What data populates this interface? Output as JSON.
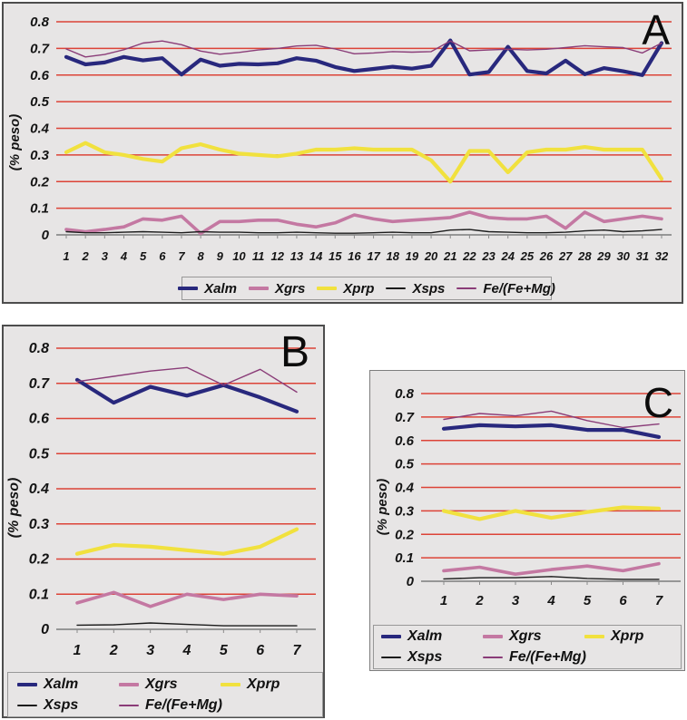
{
  "colors": {
    "page_bg": "#ffffff",
    "panel_bg": "#e7e5e5",
    "panel_border": "#4d4d4d",
    "gridline_red": "#dc4337",
    "axis_gray": "#8a8a8a",
    "text": "#141414",
    "legend_border": "#989898",
    "series": {
      "Xalm": "#28287d",
      "Xgrs": "#c478a2",
      "Xprp": "#f1e13e",
      "Xsps": "#1c1c1c",
      "Fe/(Fe+Mg)": "#8a3c78"
    }
  },
  "chart_data": [
    {
      "panel": "A",
      "type": "line",
      "title": "A",
      "ylabel": "(% peso)",
      "xlabel": "",
      "ylim": [
        0,
        0.8
      ],
      "grid": "horizontal-red",
      "legend_position": "bottom-center",
      "y_ticks": [
        "0",
        "0.1",
        "0.2",
        "0.3",
        "0.4",
        "0.5",
        "0.6",
        "0.7",
        "0.8"
      ],
      "x": [
        1,
        2,
        3,
        4,
        5,
        6,
        7,
        8,
        9,
        10,
        11,
        12,
        13,
        14,
        15,
        16,
        17,
        18,
        19,
        20,
        21,
        22,
        23,
        24,
        25,
        26,
        27,
        28,
        29,
        30,
        31,
        32
      ],
      "series": [
        {
          "name": "Xalm",
          "values": [
            0.668,
            0.64,
            0.647,
            0.668,
            0.655,
            0.663,
            0.602,
            0.658,
            0.635,
            0.642,
            0.64,
            0.644,
            0.663,
            0.654,
            0.63,
            0.615,
            0.623,
            0.631,
            0.624,
            0.635,
            0.73,
            0.602,
            0.611,
            0.706,
            0.615,
            0.606,
            0.654,
            0.603,
            0.626,
            0.614,
            0.6,
            0.72
          ]
        },
        {
          "name": "Xgrs",
          "values": [
            0.02,
            0.012,
            0.02,
            0.03,
            0.06,
            0.055,
            0.07,
            0.005,
            0.05,
            0.05,
            0.055,
            0.055,
            0.04,
            0.03,
            0.045,
            0.075,
            0.06,
            0.05,
            0.055,
            0.06,
            0.065,
            0.085,
            0.065,
            0.06,
            0.06,
            0.07,
            0.025,
            0.085,
            0.05,
            0.06,
            0.07,
            0.06
          ]
        },
        {
          "name": "Xprp",
          "values": [
            0.31,
            0.345,
            0.31,
            0.3,
            0.285,
            0.275,
            0.325,
            0.34,
            0.32,
            0.305,
            0.3,
            0.295,
            0.305,
            0.32,
            0.32,
            0.325,
            0.32,
            0.32,
            0.32,
            0.28,
            0.2,
            0.315,
            0.315,
            0.235,
            0.31,
            0.32,
            0.32,
            0.33,
            0.32,
            0.32,
            0.32,
            0.21
          ]
        },
        {
          "name": "Xsps",
          "values": [
            0.012,
            0.008,
            0.008,
            0.01,
            0.012,
            0.01,
            0.008,
            0.012,
            0.01,
            0.01,
            0.008,
            0.008,
            0.01,
            0.008,
            0.006,
            0.006,
            0.008,
            0.01,
            0.008,
            0.008,
            0.018,
            0.02,
            0.012,
            0.01,
            0.008,
            0.008,
            0.01,
            0.015,
            0.018,
            0.012,
            0.015,
            0.02
          ]
        },
        {
          "name": "Fe/(Fe+Mg)",
          "values": [
            0.698,
            0.668,
            0.677,
            0.695,
            0.72,
            0.728,
            0.714,
            0.69,
            0.678,
            0.685,
            0.694,
            0.7,
            0.709,
            0.712,
            0.698,
            0.68,
            0.683,
            0.688,
            0.686,
            0.688,
            0.728,
            0.691,
            0.694,
            0.697,
            0.694,
            0.697,
            0.703,
            0.71,
            0.706,
            0.703,
            0.683,
            0.72
          ]
        }
      ],
      "legend_rows": [
        [
          "Xalm",
          "Xgrs",
          "Xprp",
          "Xsps",
          "Fe/(Fe+Mg)"
        ]
      ]
    },
    {
      "panel": "B",
      "type": "line",
      "title": "B",
      "ylabel": "(% peso)",
      "xlabel": "",
      "ylim": [
        0,
        0.8
      ],
      "grid": "horizontal-red",
      "legend_position": "bottom",
      "y_ticks": [
        "0",
        "0.1",
        "0.2",
        "0.3",
        "0.4",
        "0.5",
        "0.6",
        "0.7",
        "0.8"
      ],
      "x": [
        1,
        2,
        3,
        4,
        5,
        6,
        7
      ],
      "series": [
        {
          "name": "Xalm",
          "values": [
            0.71,
            0.645,
            0.69,
            0.665,
            0.695,
            0.66,
            0.62
          ]
        },
        {
          "name": "Xgrs",
          "values": [
            0.075,
            0.105,
            0.065,
            0.1,
            0.085,
            0.1,
            0.095
          ]
        },
        {
          "name": "Xprp",
          "values": [
            0.215,
            0.24,
            0.235,
            0.225,
            0.215,
            0.235,
            0.285
          ]
        },
        {
          "name": "Xsps",
          "values": [
            0.012,
            0.013,
            0.018,
            0.014,
            0.01,
            0.01,
            0.01
          ]
        },
        {
          "name": "Fe/(Fe+Mg)",
          "values": [
            0.705,
            0.72,
            0.735,
            0.745,
            0.695,
            0.74,
            0.675
          ]
        }
      ],
      "legend_rows": [
        [
          "Xalm",
          "Xgrs",
          "Xprp"
        ],
        [
          "Xsps",
          "Fe/(Fe+Mg)"
        ]
      ]
    },
    {
      "panel": "C",
      "type": "line",
      "title": "C",
      "ylabel": "(% peso)",
      "xlabel": "",
      "ylim": [
        0,
        0.8
      ],
      "grid": "horizontal-red",
      "legend_position": "bottom",
      "y_ticks": [
        "0",
        "0.1",
        "0.2",
        "0.3",
        "0.4",
        "0.5",
        "0.6",
        "0.7",
        "0.8"
      ],
      "x": [
        1,
        2,
        3,
        4,
        5,
        6,
        7
      ],
      "series": [
        {
          "name": "Xalm",
          "values": [
            0.65,
            0.665,
            0.66,
            0.665,
            0.645,
            0.645,
            0.615
          ]
        },
        {
          "name": "Xgrs",
          "values": [
            0.045,
            0.06,
            0.03,
            0.05,
            0.065,
            0.045,
            0.075
          ]
        },
        {
          "name": "Xprp",
          "values": [
            0.3,
            0.265,
            0.3,
            0.27,
            0.295,
            0.315,
            0.31
          ]
        },
        {
          "name": "Xsps",
          "values": [
            0.01,
            0.015,
            0.015,
            0.02,
            0.012,
            0.008,
            0.008
          ]
        },
        {
          "name": "Fe/(Fe+Mg)",
          "values": [
            0.69,
            0.715,
            0.705,
            0.725,
            0.685,
            0.655,
            0.67
          ]
        }
      ],
      "legend_rows": [
        [
          "Xalm",
          "Xgrs",
          "Xprp"
        ],
        [
          "Xsps",
          "Fe/(Fe+Mg)"
        ]
      ]
    }
  ]
}
